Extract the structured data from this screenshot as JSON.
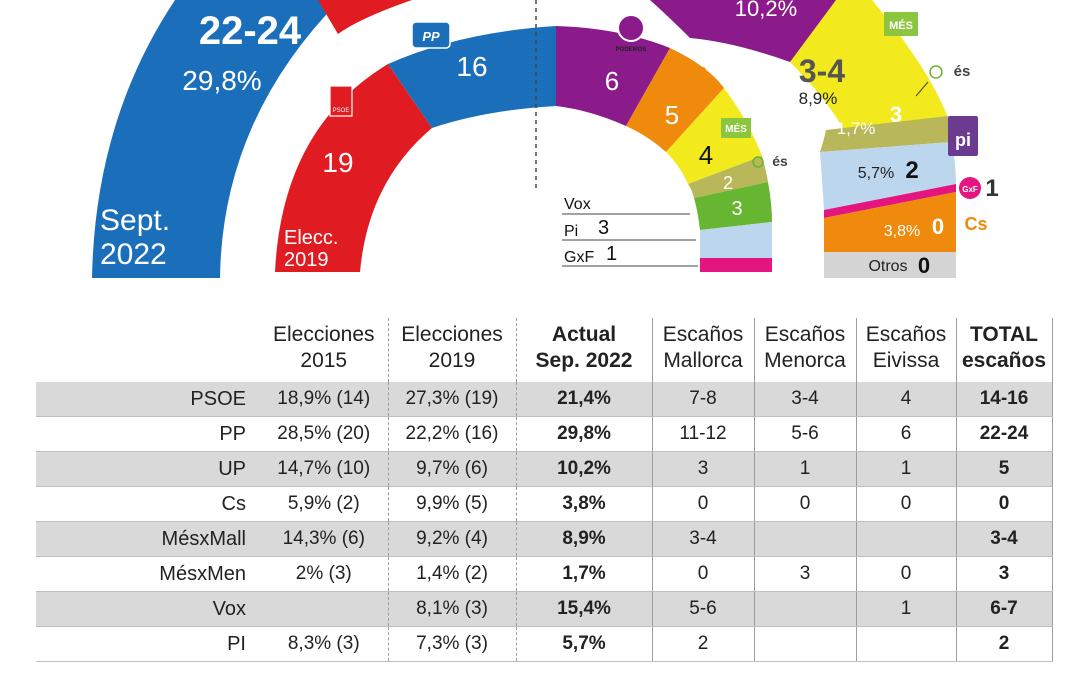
{
  "chart_data": [
    {
      "type": "pie",
      "subtype": "parliament-semicircle",
      "label": "Sept. 2022",
      "label_lines": [
        "Sept.",
        "2022"
      ],
      "segments": [
        {
          "party": "PP",
          "seats": "22-24",
          "pct": "29,8%",
          "seats_value": 23,
          "color": "#1b6fba"
        },
        {
          "party": "PSOE",
          "color": "#e11b22"
        },
        {
          "party": "UP",
          "pct": "10,2%",
          "color": "#8b1a8b"
        },
        {
          "party": "MésxMall",
          "seats": "3-4",
          "pct": "8,9%",
          "seats_value": 3.5,
          "color": "#f3ea1d"
        },
        {
          "party": "MésxMen",
          "seats": "3",
          "pct": "1,7%",
          "seats_value": 3,
          "color": "#b8b85a"
        },
        {
          "party": "PI",
          "seats": "2",
          "pct": "5,7%",
          "seats_value": 2,
          "color": "#bcd6ee"
        },
        {
          "party": "GxF",
          "seats": "1",
          "seats_value": 1,
          "color": "#e4157f"
        },
        {
          "party": "Cs",
          "seats": "0",
          "pct": "3,8%",
          "seats_value": 0,
          "color": "#f08a0c"
        },
        {
          "party": "Otros",
          "seats": "0",
          "seats_value": 0,
          "color": "#d4d4d4"
        }
      ]
    },
    {
      "type": "pie",
      "subtype": "parliament-semicircle",
      "label": "Elecc. 2019",
      "label_lines": [
        "Elecc.",
        "2019"
      ],
      "segments": [
        {
          "party": "PSOE",
          "seats": 19,
          "color": "#e11b22"
        },
        {
          "party": "PP",
          "seats": 16,
          "color": "#1b6fba"
        },
        {
          "party": "UP",
          "seats": 6,
          "color": "#8b1a8b"
        },
        {
          "party": "Cs",
          "seats": 5,
          "color": "#f08a0c"
        },
        {
          "party": "MésxMall",
          "seats": 4,
          "color": "#f3ea1d"
        },
        {
          "party": "MésxMen",
          "seats": 2,
          "color": "#b8b85a"
        },
        {
          "party": "Vox",
          "seats": 3,
          "color": "#67b631"
        },
        {
          "party": "Pi",
          "seats": 3,
          "color": "#bcd6ee"
        },
        {
          "party": "GxF",
          "seats": 1,
          "color": "#e4157f"
        }
      ]
    },
    {
      "type": "table",
      "headers": [
        "",
        [
          "Elecciones",
          "2015"
        ],
        [
          "Elecciones",
          "2019"
        ],
        [
          "Actual",
          "Sep. 2022"
        ],
        [
          "Escaños",
          "Mallorca"
        ],
        [
          "Escaños",
          "Menorca"
        ],
        [
          "Escaños",
          "Eivissa"
        ],
        [
          "TOTAL",
          "escaños"
        ]
      ],
      "rows": [
        [
          "PSOE",
          "18,9% (14)",
          "27,3% (19)",
          "21,4%",
          "7-8",
          "3-4",
          "4",
          "14-16"
        ],
        [
          "PP",
          "28,5% (20)",
          "22,2% (16)",
          "29,8%",
          "11-12",
          "5-6",
          "6",
          "22-24"
        ],
        [
          "UP",
          "14,7% (10)",
          "9,7% (6)",
          "10,2%",
          "3",
          "1",
          "1",
          "5"
        ],
        [
          "Cs",
          "5,9% (2)",
          "9,9% (5)",
          "3,8%",
          "0",
          "0",
          "0",
          "0"
        ],
        [
          "MésxMall",
          "14,3% (6)",
          "9,2% (4)",
          "8,9%",
          "3-4",
          "",
          "",
          "3-4"
        ],
        [
          "MésxMen",
          "2% (3)",
          "1,4% (2)",
          "1,7%",
          "0",
          "3",
          "0",
          "3"
        ],
        [
          "Vox",
          "",
          "8,1% (3)",
          "15,4%",
          "5-6",
          "",
          "1",
          "6-7"
        ],
        [
          "PI",
          "8,3% (3)",
          "7,3% (3)",
          "5,7%",
          "2",
          "",
          "",
          "2"
        ]
      ]
    }
  ],
  "logos": {
    "pp": "PP",
    "psoe": "PSOE",
    "podemos": "PODEMOS",
    "cs": "Cs",
    "mes": "MÉS",
    "es": "és",
    "pi": "pi",
    "gxf": "GxF"
  },
  "inner_legend": [
    {
      "party": "Vox",
      "seats": ""
    },
    {
      "party": "Pi",
      "seats": "3"
    },
    {
      "party": "GxF",
      "seats": "1"
    }
  ],
  "colors": {
    "pp": "#1b6fba",
    "psoe": "#e11b22",
    "up": "#8b1a8b",
    "cs": "#f08a0c",
    "mes_mall": "#f3ea1d",
    "mes_men": "#b8b85a",
    "vox": "#67b631",
    "pi": "#bcd6ee",
    "gxf": "#e4157f",
    "otros": "#d4d4d4",
    "row_shade": "#d9d9d9"
  }
}
